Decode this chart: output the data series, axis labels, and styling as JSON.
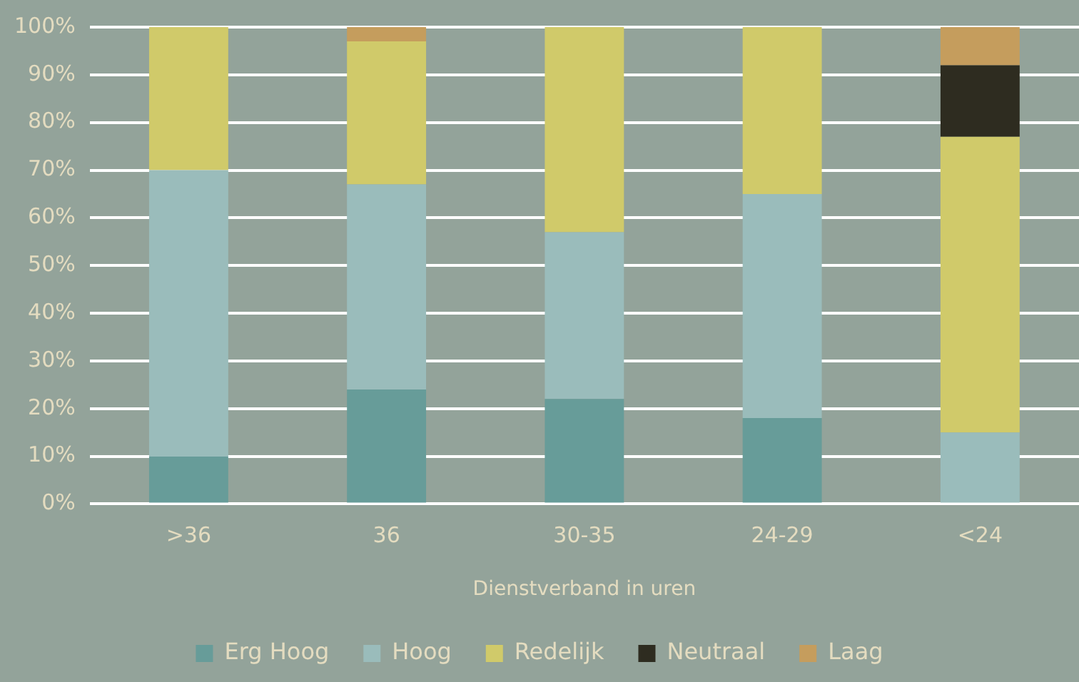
{
  "chart_data": {
    "type": "bar",
    "stacked": true,
    "xlabel": "Dienstverband in uren",
    "categories": [
      ">36",
      "36",
      "30-35",
      "24-29",
      "<24"
    ],
    "series": [
      {
        "name": "Erg Hoog",
        "color": "#679c99",
        "values": [
          10,
          24,
          22,
          18,
          0
        ]
      },
      {
        "name": "Hoog",
        "color": "#9abcbb",
        "values": [
          60,
          43,
          35,
          47,
          15
        ]
      },
      {
        "name": "Redelijk",
        "color": "#d0ca6a",
        "values": [
          30,
          30,
          43,
          35,
          62
        ]
      },
      {
        "name": "Neutraal",
        "color": "#2e2c20",
        "values": [
          0,
          0,
          0,
          0,
          15
        ]
      },
      {
        "name": "Laag",
        "color": "#c59d5d",
        "values": [
          0,
          3,
          0,
          0,
          8
        ]
      }
    ],
    "ylim": [
      0,
      100
    ],
    "yticks": [
      {
        "value": 0,
        "label": "0%"
      },
      {
        "value": 10,
        "label": "10%"
      },
      {
        "value": 20,
        "label": "20%"
      },
      {
        "value": 30,
        "label": "30%"
      },
      {
        "value": 40,
        "label": "40%"
      },
      {
        "value": 50,
        "label": "50%"
      },
      {
        "value": 60,
        "label": "60%"
      },
      {
        "value": 70,
        "label": "70%"
      },
      {
        "value": 80,
        "label": "80%"
      },
      {
        "value": 90,
        "label": "90%"
      },
      {
        "value": 100,
        "label": "100%"
      }
    ],
    "grid": "y",
    "legend": "bottom"
  }
}
